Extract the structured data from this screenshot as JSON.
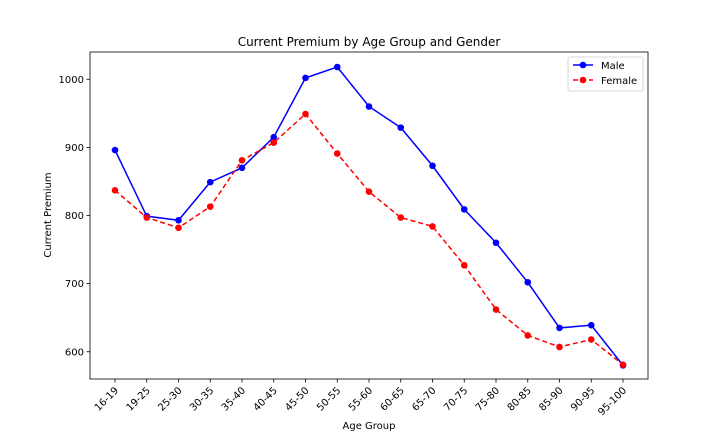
{
  "chart_data": {
    "type": "line",
    "title": "Current Premium by Age Group and Gender",
    "xlabel": "Age Group",
    "ylabel": "Current Premium",
    "categories": [
      "16-19",
      "19-25",
      "25-30",
      "30-35",
      "35-40",
      "40-45",
      "45-50",
      "50-55",
      "55-60",
      "60-65",
      "65-70",
      "70-75",
      "75-80",
      "80-85",
      "85-90",
      "90-95",
      "95-100"
    ],
    "ylim": [
      560,
      1040
    ],
    "yticks": [
      600,
      700,
      800,
      900,
      1000
    ],
    "grid": false,
    "legend": "top-right",
    "series": [
      {
        "name": "Male",
        "color": "#0000ff",
        "line_style": "solid",
        "marker": "circle",
        "values": [
          896,
          799,
          793,
          849,
          870,
          915,
          1002,
          1018,
          960,
          929,
          873,
          809,
          760,
          702,
          635,
          639,
          580
        ]
      },
      {
        "name": "Female",
        "color": "#ff0000",
        "line_style": "dashed",
        "marker": "circle",
        "values": [
          837,
          797,
          782,
          813,
          881,
          907,
          949,
          891,
          835,
          797,
          784,
          727,
          662,
          624,
          607,
          618,
          581
        ]
      }
    ]
  }
}
